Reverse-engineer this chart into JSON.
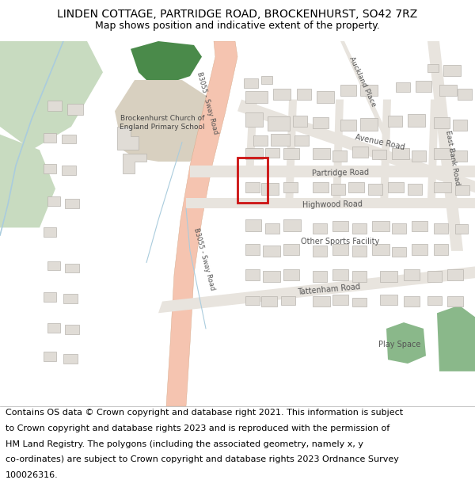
{
  "title_line1": "LINDEN COTTAGE, PARTRIDGE ROAD, BROCKENHURST, SO42 7RZ",
  "title_line2": "Map shows position and indicative extent of the property.",
  "footer_lines": [
    "Contains OS data © Crown copyright and database right 2021. This information is subject",
    "to Crown copyright and database rights 2023 and is reproduced with the permission of",
    "HM Land Registry. The polygons (including the associated geometry, namely x, y",
    "co-ordinates) are subject to Crown copyright and database rights 2023 Ordnance Survey",
    "100026316."
  ],
  "title_fontsize": 10,
  "subtitle_fontsize": 9,
  "footer_fontsize": 8,
  "map_bg": "#ffffff",
  "road_main_color": "#f5c4b0",
  "road_secondary_color": "#e8e4de",
  "building_color": "#e0dcd6",
  "building_edge": "#b8b4ae",
  "green_light": "#c8dbc0",
  "green_dark": "#4a8a4a",
  "green_medium": "#8ab88a",
  "water_color": "#aaccdd",
  "property_color": "#cc1111",
  "text_color": "#555555"
}
